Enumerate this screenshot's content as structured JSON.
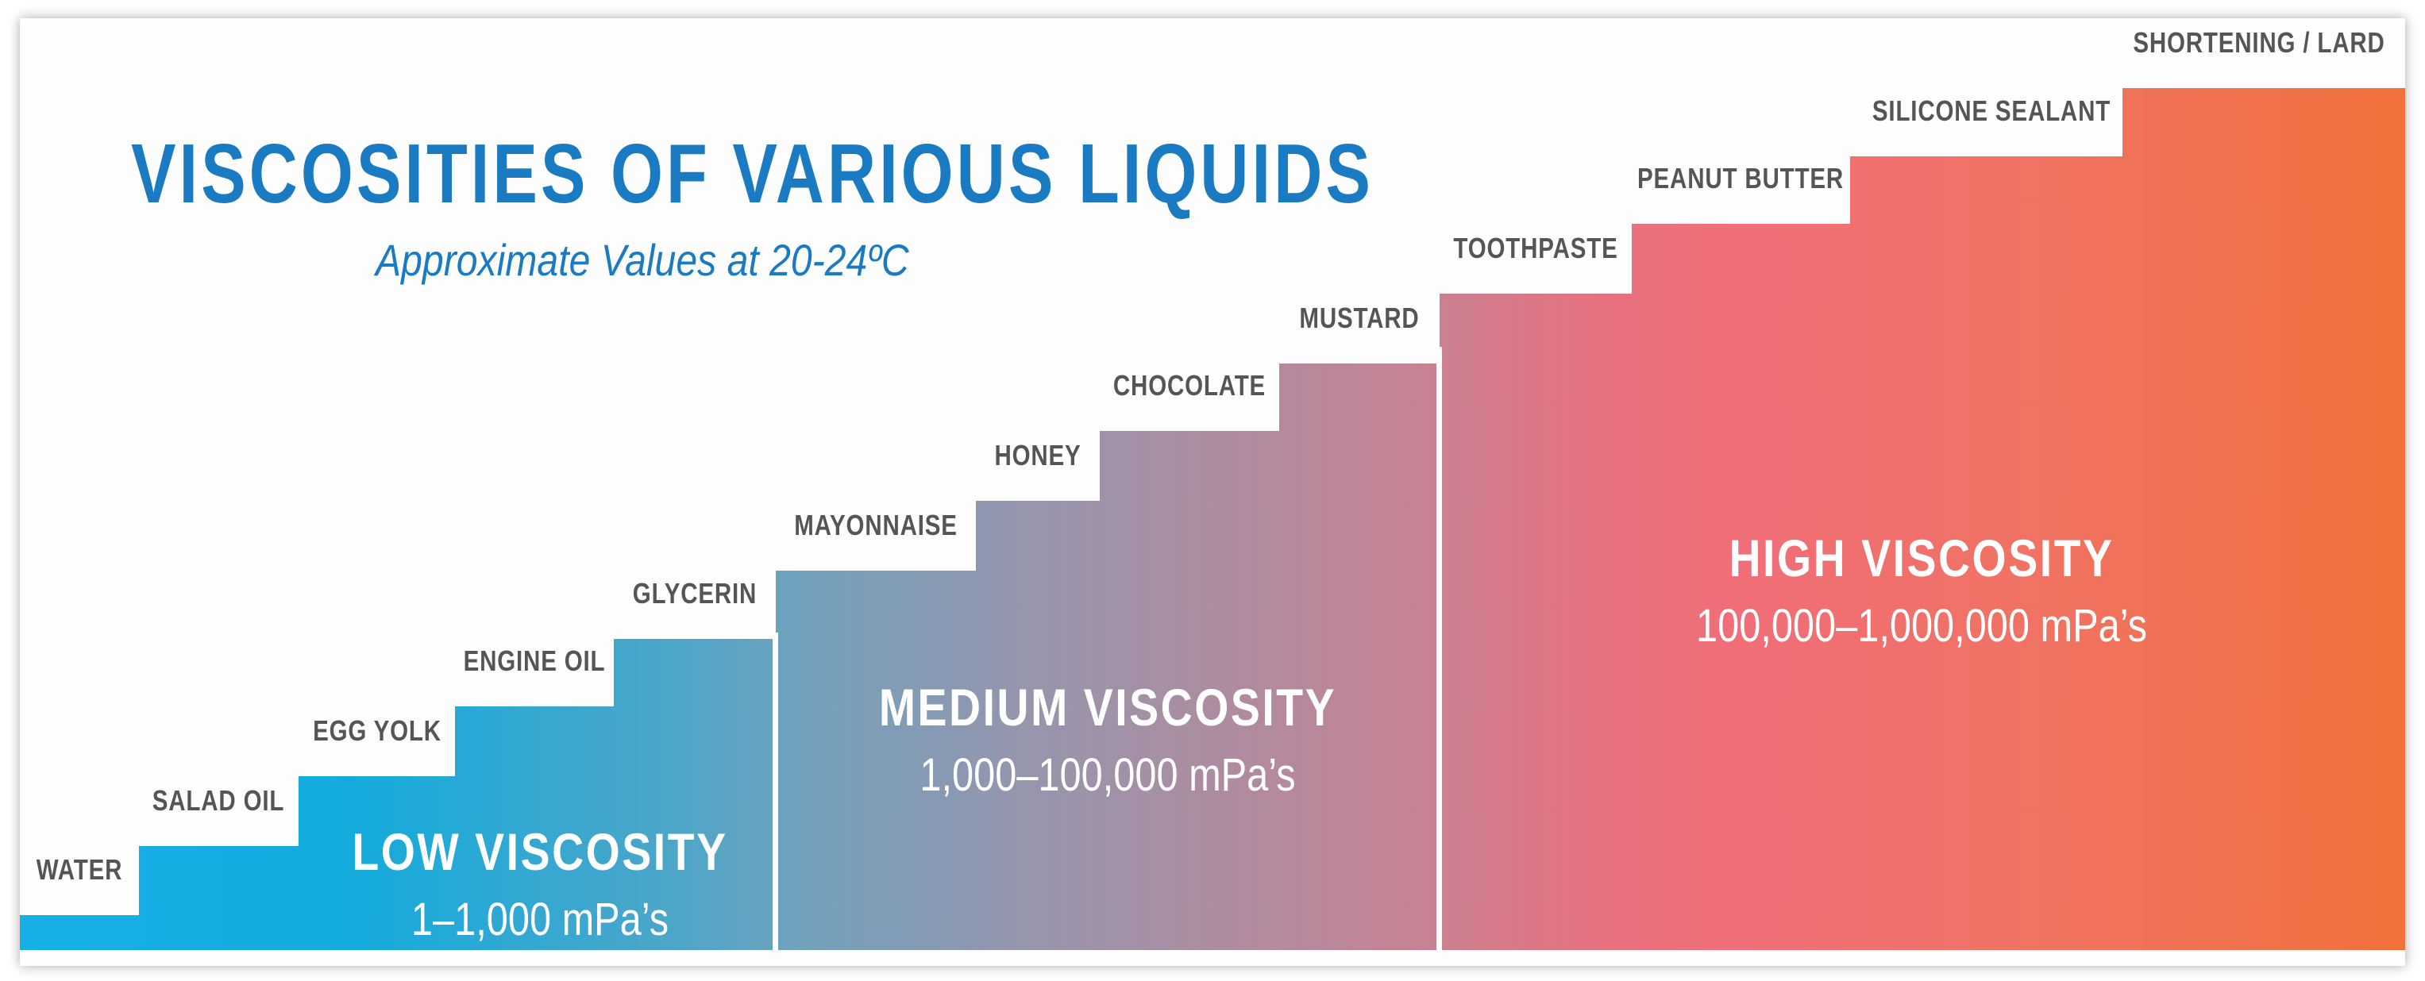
{
  "title": "VISCOSITIES OF VARIOUS LIQUIDS",
  "subtitle": "Approximate Values at 20-24ºC",
  "liquids": [
    {
      "label": "WATER"
    },
    {
      "label": "SALAD OIL"
    },
    {
      "label": "EGG YOLK"
    },
    {
      "label": "ENGINE OIL"
    },
    {
      "label": "GLYCERIN"
    },
    {
      "label": "MAYONNAISE"
    },
    {
      "label": "HONEY"
    },
    {
      "label": "CHOCOLATE"
    },
    {
      "label": "MUSTARD"
    },
    {
      "label": "TOOTHPASTE"
    },
    {
      "label": "PEANUT BUTTER"
    },
    {
      "label": "SILICONE SEALANT"
    },
    {
      "label": "SHORTENING / LARD"
    }
  ],
  "regions": {
    "low": {
      "name": "LOW VISCOSITY",
      "range": "1–1,000 mPa’s"
    },
    "medium": {
      "name": "MEDIUM VISCOSITY",
      "range": "1,000–100,000 mPa’s"
    },
    "high": {
      "name": "HIGH VISCOSITY",
      "range": "100,000–1,000,000 mPa’s"
    }
  },
  "colors": {
    "title": "#1b7bc2",
    "low": "#08aae6",
    "medium": "#8f8fa8",
    "high_start": "#ef6570",
    "high_end": "#f0682e",
    "label": "#555557"
  }
}
